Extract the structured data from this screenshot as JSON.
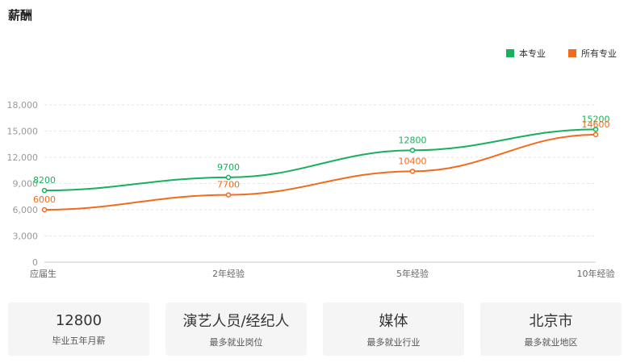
{
  "header": {
    "title": "薪酬"
  },
  "legend": [
    {
      "label": "本专业",
      "color": "#1aaf5d"
    },
    {
      "label": "所有专业",
      "color": "#f26b1d"
    }
  ],
  "chart_data": {
    "type": "line",
    "categories": [
      "应届生",
      "2年经验",
      "5年经验",
      "10年经验"
    ],
    "series": [
      {
        "name": "本专业",
        "color": "#1aaf5d",
        "values": [
          8200,
          9700,
          12800,
          15200
        ]
      },
      {
        "name": "所有专业",
        "color": "#f26b1d",
        "values": [
          6000,
          7700,
          10400,
          14600
        ]
      }
    ],
    "yticks": [
      "0",
      "3,000",
      "6,000",
      "9,000",
      "12,000",
      "15,000",
      "18,000"
    ],
    "ylim": [
      0,
      18000
    ],
    "grid": true,
    "legend_position": "top-right"
  },
  "cards": [
    {
      "value": "12800",
      "label": "毕业五年月薪"
    },
    {
      "value": "演艺人员/经纪人",
      "label": "最多就业岗位"
    },
    {
      "value": "媒体",
      "label": "最多就业行业"
    },
    {
      "value": "北京市",
      "label": "最多就业地区"
    }
  ]
}
